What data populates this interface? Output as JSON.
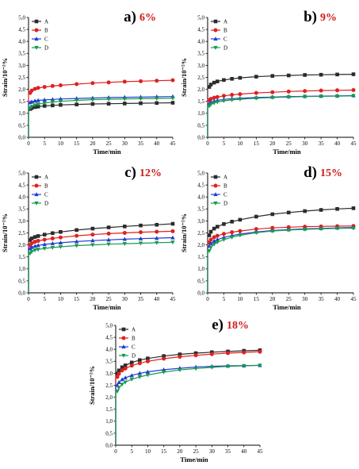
{
  "figure": {
    "series_colors": {
      "A": "#2b2b2b",
      "B": "#e02020",
      "C": "#1f3fd0",
      "D": "#1a9a50"
    },
    "series_markers": {
      "A": "square",
      "B": "circle",
      "C": "triangle-up",
      "D": "triangle-down"
    }
  },
  "chart_data": [
    {
      "type": "line",
      "panel_label": "a)",
      "panel_value": "6%",
      "xlabel": "Time/min",
      "ylabel": "Strain/10⁻²%",
      "xlim": [
        0,
        45
      ],
      "ylim": [
        0,
        5
      ],
      "xticks": [
        "0",
        "5",
        "10",
        "15",
        "20",
        "25",
        "30",
        "35",
        "40",
        "45"
      ],
      "yticks": [
        "0,0",
        "0,5",
        "1,0",
        "1,5",
        "2,0",
        "2,5",
        "3,0",
        "3,5",
        "4,0",
        "4,5",
        "5,0"
      ],
      "legend_position": "top-left",
      "x": [
        0.5,
        1,
        2,
        3,
        5,
        7.5,
        10,
        15,
        20,
        25,
        30,
        35,
        40,
        45
      ],
      "series": [
        {
          "name": "A",
          "values": [
            1.18,
            1.22,
            1.26,
            1.28,
            1.31,
            1.33,
            1.35,
            1.37,
            1.39,
            1.4,
            1.41,
            1.42,
            1.43,
            1.44
          ]
        },
        {
          "name": "B",
          "values": [
            1.85,
            1.95,
            2.02,
            2.06,
            2.1,
            2.14,
            2.17,
            2.22,
            2.26,
            2.29,
            2.32,
            2.34,
            2.36,
            2.38
          ]
        },
        {
          "name": "C",
          "values": [
            1.45,
            1.48,
            1.52,
            1.54,
            1.56,
            1.58,
            1.6,
            1.62,
            1.64,
            1.66,
            1.67,
            1.68,
            1.69,
            1.7
          ]
        },
        {
          "name": "D",
          "values": [
            1.22,
            1.28,
            1.34,
            1.38,
            1.43,
            1.47,
            1.5,
            1.54,
            1.57,
            1.59,
            1.6,
            1.61,
            1.62,
            1.63
          ]
        }
      ]
    },
    {
      "type": "line",
      "panel_label": "b)",
      "panel_value": "9%",
      "xlabel": "Time/min",
      "ylabel": "Strain/10⁻²%",
      "xlim": [
        0,
        45
      ],
      "ylim": [
        0,
        5
      ],
      "xticks": [
        "0",
        "5",
        "10",
        "15",
        "20",
        "25",
        "30",
        "35",
        "40",
        "45"
      ],
      "yticks": [
        "0,0",
        "0,5",
        "1,0",
        "1,5",
        "2,0",
        "2,5",
        "3,0",
        "3,5",
        "4,0",
        "4,5",
        "5,0"
      ],
      "legend_position": "top-left",
      "x": [
        0.5,
        1,
        2,
        3,
        5,
        7.5,
        10,
        15,
        20,
        25,
        30,
        35,
        40,
        45
      ],
      "series": [
        {
          "name": "A",
          "values": [
            2.1,
            2.2,
            2.28,
            2.33,
            2.39,
            2.44,
            2.48,
            2.53,
            2.56,
            2.58,
            2.6,
            2.61,
            2.62,
            2.63
          ]
        },
        {
          "name": "B",
          "values": [
            1.55,
            1.6,
            1.65,
            1.68,
            1.73,
            1.77,
            1.8,
            1.85,
            1.88,
            1.91,
            1.93,
            1.95,
            1.96,
            1.97
          ]
        },
        {
          "name": "C",
          "values": [
            1.4,
            1.46,
            1.51,
            1.54,
            1.58,
            1.61,
            1.63,
            1.66,
            1.68,
            1.7,
            1.71,
            1.72,
            1.73,
            1.74
          ]
        },
        {
          "name": "D",
          "values": [
            1.3,
            1.37,
            1.43,
            1.47,
            1.52,
            1.56,
            1.59,
            1.63,
            1.66,
            1.68,
            1.7,
            1.71,
            1.72,
            1.73
          ]
        }
      ]
    },
    {
      "type": "line",
      "panel_label": "c)",
      "panel_value": "12%",
      "xlabel": "Time/min",
      "ylabel": "Strain/10⁻²%",
      "xlim": [
        0,
        45
      ],
      "ylim": [
        0,
        5
      ],
      "xticks": [
        "0",
        "5",
        "10",
        "15",
        "20",
        "25",
        "30",
        "35",
        "40",
        "45"
      ],
      "yticks": [
        "0,0",
        "0,5",
        "1,0",
        "1,5",
        "2,0",
        "2,5",
        "3,0",
        "3,5",
        "4,0",
        "4,5",
        "5,0"
      ],
      "legend_position": "top-left",
      "x": [
        0.5,
        1,
        2,
        3,
        5,
        7.5,
        10,
        15,
        20,
        25,
        30,
        35,
        40,
        45
      ],
      "series": [
        {
          "name": "A",
          "values": [
            2.2,
            2.27,
            2.33,
            2.37,
            2.43,
            2.49,
            2.54,
            2.62,
            2.68,
            2.73,
            2.77,
            2.81,
            2.84,
            2.88
          ]
        },
        {
          "name": "B",
          "values": [
            2.0,
            2.07,
            2.13,
            2.17,
            2.22,
            2.27,
            2.31,
            2.38,
            2.43,
            2.47,
            2.5,
            2.53,
            2.55,
            2.57
          ]
        },
        {
          "name": "C",
          "values": [
            1.85,
            1.9,
            1.95,
            1.98,
            2.02,
            2.06,
            2.09,
            2.14,
            2.18,
            2.21,
            2.24,
            2.26,
            2.28,
            2.3
          ]
        },
        {
          "name": "D",
          "values": [
            1.65,
            1.72,
            1.78,
            1.81,
            1.85,
            1.89,
            1.92,
            1.97,
            2.0,
            2.03,
            2.05,
            2.07,
            2.09,
            2.11
          ]
        }
      ]
    },
    {
      "type": "line",
      "panel_label": "d)",
      "panel_value": "15%",
      "xlabel": "Time/min",
      "ylabel": "Strain/10⁻²%",
      "xlim": [
        0,
        45
      ],
      "ylim": [
        0,
        5
      ],
      "xticks": [
        "0",
        "5",
        "10",
        "15",
        "20",
        "25",
        "30",
        "35",
        "40",
        "45"
      ],
      "yticks": [
        "0,0",
        "0,5",
        "1,0",
        "1,5",
        "2,0",
        "2,5",
        "3,0",
        "3,5",
        "4,0",
        "4,5",
        "5,0"
      ],
      "legend_position": "top-left",
      "x": [
        0.5,
        1,
        2,
        3,
        5,
        7.5,
        10,
        15,
        20,
        25,
        30,
        35,
        40,
        45
      ],
      "series": [
        {
          "name": "A",
          "values": [
            2.4,
            2.55,
            2.68,
            2.76,
            2.87,
            2.97,
            3.05,
            3.18,
            3.28,
            3.35,
            3.41,
            3.46,
            3.5,
            3.53
          ]
        },
        {
          "name": "B",
          "values": [
            2.1,
            2.22,
            2.32,
            2.38,
            2.46,
            2.53,
            2.58,
            2.66,
            2.71,
            2.74,
            2.76,
            2.77,
            2.78,
            2.79
          ]
        },
        {
          "name": "C",
          "values": [
            1.95,
            2.06,
            2.16,
            2.22,
            2.31,
            2.39,
            2.45,
            2.54,
            2.6,
            2.64,
            2.67,
            2.69,
            2.71,
            2.73
          ]
        },
        {
          "name": "D",
          "values": [
            1.75,
            1.9,
            2.03,
            2.11,
            2.22,
            2.32,
            2.4,
            2.51,
            2.58,
            2.62,
            2.65,
            2.67,
            2.69,
            2.7
          ]
        }
      ]
    },
    {
      "type": "line",
      "panel_label": "e)",
      "panel_value": "18%",
      "xlabel": "Time/min",
      "ylabel": "Strain/10⁻²%",
      "xlim": [
        0,
        45
      ],
      "ylim": [
        0,
        5
      ],
      "xticks": [
        "0",
        "5",
        "10",
        "15",
        "20",
        "25",
        "30",
        "35",
        "40",
        "45"
      ],
      "yticks": [
        "0,0",
        "0,5",
        "1,0",
        "1,5",
        "2,0",
        "2,5",
        "3,0",
        "3,5",
        "4,0",
        "4,5",
        "5,0"
      ],
      "legend_position": "top-left",
      "x": [
        0.5,
        1,
        2,
        3,
        5,
        7.5,
        10,
        15,
        20,
        25,
        30,
        35,
        40,
        45
      ],
      "series": [
        {
          "name": "A",
          "values": [
            3.0,
            3.12,
            3.25,
            3.33,
            3.45,
            3.55,
            3.62,
            3.72,
            3.79,
            3.84,
            3.88,
            3.91,
            3.94,
            3.96
          ]
        },
        {
          "name": "B",
          "values": [
            2.85,
            2.98,
            3.12,
            3.2,
            3.32,
            3.42,
            3.5,
            3.61,
            3.69,
            3.75,
            3.8,
            3.84,
            3.87,
            3.9
          ]
        },
        {
          "name": "C",
          "values": [
            2.5,
            2.62,
            2.74,
            2.81,
            2.91,
            3.0,
            3.06,
            3.15,
            3.21,
            3.26,
            3.29,
            3.31,
            3.32,
            3.33
          ]
        },
        {
          "name": "D",
          "values": [
            2.25,
            2.4,
            2.54,
            2.63,
            2.75,
            2.85,
            2.93,
            3.05,
            3.14,
            3.2,
            3.25,
            3.29,
            3.31,
            3.33
          ]
        }
      ]
    }
  ]
}
